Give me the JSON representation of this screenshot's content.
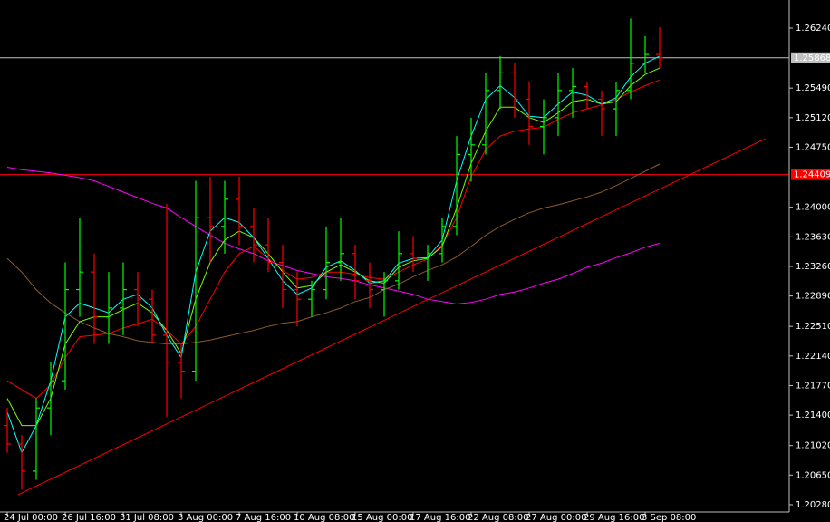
{
  "chart_data": {
    "type": "ohlc",
    "up_color": "#00ff00",
    "down_color": "#ff0000",
    "categories": [
      "24 Jul 00:00",
      null,
      null,
      null,
      "26 Jul 16:00",
      null,
      null,
      null,
      "31 Jul 08:00",
      null,
      null,
      null,
      "3 Aug 00:00",
      null,
      null,
      null,
      "7 Aug 16:00",
      null,
      null,
      null,
      "10 Aug 08:00",
      null,
      null,
      null,
      "15 Aug 00:00",
      null,
      null,
      null,
      "17 Aug 16:00",
      null,
      null,
      null,
      "22 Aug 08:00",
      null,
      null,
      null,
      "27 Aug 00:00",
      null,
      null,
      null,
      "29 Aug 16:00",
      null,
      null,
      null,
      "3 Sep 08:00",
      null
    ],
    "open": [
      1.2127,
      1.2104,
      1.207,
      1.2149,
      1.2183,
      1.2297,
      1.2319,
      1.2263,
      1.2274,
      1.2297,
      1.2285,
      1.224,
      1.2206,
      1.2195,
      1.2387,
      1.2376,
      1.241,
      1.2376,
      1.2353,
      1.2331,
      1.2297,
      1.2285,
      1.2297,
      1.2331,
      1.2342,
      1.2308,
      1.2297,
      1.2308,
      1.2342,
      1.2336,
      1.2342,
      1.2376,
      1.2466,
      1.2478,
      1.2546,
      1.2568,
      1.2535,
      1.2501,
      1.2512,
      1.2546,
      1.2551,
      1.2535,
      1.2523,
      1.2546,
      1.258,
      1.2591
    ],
    "high": [
      1.2149,
      1.2115,
      1.2161,
      1.2206,
      1.2331,
      1.2386,
      1.2342,
      1.2319,
      1.2331,
      1.2319,
      1.2297,
      1.2404,
      1.2229,
      1.2433,
      1.2438,
      1.2433,
      1.2438,
      1.2399,
      1.2387,
      1.2353,
      1.2319,
      1.2308,
      1.2376,
      1.2387,
      1.2353,
      1.2331,
      1.2319,
      1.237,
      1.2364,
      1.2353,
      1.2387,
      1.2489,
      1.2512,
      1.2568,
      1.2589,
      1.258,
      1.2557,
      1.2535,
      1.2568,
      1.2574,
      1.2557,
      1.2546,
      1.2557,
      1.2636,
      1.2614,
      1.2625
    ],
    "low": [
      1.2093,
      1.2047,
      1.2059,
      1.2115,
      1.2172,
      1.2263,
      1.2229,
      1.2229,
      1.224,
      1.2251,
      1.2229,
      1.2138,
      1.2161,
      1.2183,
      1.2331,
      1.2342,
      1.2353,
      1.2331,
      1.2319,
      1.2274,
      1.2251,
      1.2263,
      1.2285,
      1.2308,
      1.2285,
      1.2274,
      1.2263,
      1.2297,
      1.2319,
      1.2308,
      1.2331,
      1.2365,
      1.2432,
      1.2466,
      1.2523,
      1.2512,
      1.2478,
      1.2466,
      1.2489,
      1.2512,
      1.2523,
      1.2489,
      1.2489,
      1.2535,
      1.2568,
      1.2574
    ],
    "close": [
      1.2104,
      1.207,
      1.2149,
      1.2183,
      1.2297,
      1.2319,
      1.2263,
      1.2274,
      1.2297,
      1.2285,
      1.224,
      1.2206,
      1.2195,
      1.2387,
      1.2376,
      1.241,
      1.2376,
      1.2353,
      1.2331,
      1.2297,
      1.2285,
      1.2297,
      1.2331,
      1.2342,
      1.2308,
      1.2297,
      1.2308,
      1.2342,
      1.2336,
      1.2342,
      1.2376,
      1.2466,
      1.2478,
      1.2546,
      1.2568,
      1.2535,
      1.2501,
      1.2512,
      1.2546,
      1.2551,
      1.2535,
      1.2523,
      1.2546,
      1.258,
      1.2591,
      1.25868
    ],
    "series": [
      {
        "color": "#ff00ff",
        "values": [
          1.245,
          1.2447,
          1.2445,
          1.2443,
          1.244,
          1.2437,
          1.2433,
          1.2426,
          1.2419,
          1.2412,
          1.2405,
          1.2399,
          1.2387,
          1.2376,
          1.2365,
          1.2355,
          1.2348,
          1.2342,
          1.2333,
          1.2327,
          1.2321,
          1.2317,
          1.2313,
          1.2311,
          1.2308,
          1.2303,
          1.2299,
          1.2295,
          1.2291,
          1.2285,
          1.2282,
          1.2279,
          1.2281,
          1.2285,
          1.2291,
          1.2294,
          1.2299,
          1.2305,
          1.231,
          1.2317,
          1.2325,
          1.233,
          1.2337,
          1.2343,
          1.235,
          1.2355
        ]
      },
      {
        "color": "#8b5a2b",
        "values": [
          1.2336,
          1.2319,
          1.2297,
          1.228,
          1.2268,
          1.2257,
          1.2249,
          1.2242,
          1.2238,
          1.2233,
          1.2231,
          1.2229,
          1.2229,
          1.2231,
          1.2234,
          1.2238,
          1.2242,
          1.2246,
          1.2251,
          1.2255,
          1.2257,
          1.2263,
          1.2268,
          1.2274,
          1.2282,
          1.2287,
          1.2297,
          1.2304,
          1.2313,
          1.2321,
          1.2328,
          1.2338,
          1.2351,
          1.2365,
          1.2376,
          1.2385,
          1.2393,
          1.2399,
          1.2403,
          1.2408,
          1.2413,
          1.2419,
          1.2427,
          1.2436,
          1.2445,
          1.2454
        ]
      },
      {
        "color": "#ff0000",
        "values": [
          1.2183,
          1.2172,
          1.2161,
          1.2178,
          1.2212,
          1.2238,
          1.224,
          1.2242,
          1.2249,
          1.2254,
          1.226,
          1.2246,
          1.2229,
          1.2251,
          1.2285,
          1.2319,
          1.2342,
          1.2351,
          1.2336,
          1.2321,
          1.231,
          1.2312,
          1.2319,
          1.2319,
          1.2316,
          1.2312,
          1.231,
          1.2319,
          1.2328,
          1.2335,
          1.2353,
          1.2387,
          1.2438,
          1.2472,
          1.2489,
          1.2495,
          1.2498,
          1.25,
          1.251,
          1.2518,
          1.2523,
          1.2528,
          1.2535,
          1.2544,
          1.2552,
          1.2559
        ]
      },
      {
        "color": "#7cfc00",
        "values": [
          1.2161,
          1.2127,
          1.2127,
          1.2161,
          1.2229,
          1.2257,
          1.2263,
          1.2263,
          1.2272,
          1.228,
          1.2268,
          1.2246,
          1.2217,
          1.2285,
          1.2331,
          1.2359,
          1.237,
          1.2362,
          1.2342,
          1.2319,
          1.2299,
          1.2302,
          1.2319,
          1.2328,
          1.2319,
          1.2308,
          1.2305,
          1.2325,
          1.2333,
          1.2336,
          1.2351,
          1.2399,
          1.2455,
          1.2495,
          1.2525,
          1.2525,
          1.2512,
          1.2506,
          1.2518,
          1.2532,
          1.2535,
          1.2529,
          1.2532,
          1.2552,
          1.2566,
          1.2574
        ]
      },
      {
        "color": "#00ffff",
        "values": [
          1.2144,
          1.2093,
          1.2127,
          1.2183,
          1.2263,
          1.228,
          1.2274,
          1.2268,
          1.2285,
          1.2291,
          1.2274,
          1.224,
          1.2212,
          1.2319,
          1.237,
          1.2387,
          1.2381,
          1.2362,
          1.2336,
          1.2308,
          1.2291,
          1.2299,
          1.2325,
          1.2333,
          1.2321,
          1.2305,
          1.2308,
          1.233,
          1.2336,
          1.2337,
          1.2359,
          1.2433,
          1.2489,
          1.2535,
          1.2552,
          1.2537,
          1.2514,
          1.2512,
          1.2529,
          1.2544,
          1.254,
          1.2529,
          1.2537,
          1.2563,
          1.258,
          1.2589
        ]
      }
    ],
    "hlines": [
      {
        "value": 1.25868,
        "color": "#c0c0c0",
        "label_color": "#000000"
      },
      {
        "value": 1.24409,
        "color": "#ff0000",
        "label_color": "#000000"
      }
    ],
    "trendline": {
      "x": [
        0.75,
        52.3
      ],
      "y": [
        1.20405,
        1.24857
      ],
      "color": "#ff0000"
    },
    "ylim": [
      1.20189,
      1.26591
    ],
    "yticks": [
      {
        "value": 1.2028,
        "label": "1.20280"
      },
      {
        "value": 1.2065,
        "label": "1.20650"
      },
      {
        "value": 1.2102,
        "label": "1.21020"
      },
      {
        "value": 1.214,
        "label": "1.21400"
      },
      {
        "value": 1.2177,
        "label": "1.21770"
      },
      {
        "value": 1.2214,
        "label": "1.22140"
      },
      {
        "value": 1.2251,
        "label": "1.22510"
      },
      {
        "value": 1.2289,
        "label": "1.22890"
      },
      {
        "value": 1.2326,
        "label": "1.23260"
      },
      {
        "value": 1.2363,
        "label": "1.23630"
      },
      {
        "value": 1.24,
        "label": "1.24000"
      },
      {
        "value": 1.2475,
        "label": "1.24750"
      },
      {
        "value": 1.2512,
        "label": "1.25120"
      },
      {
        "value": 1.2549,
        "label": "1.25490"
      },
      {
        "value": 1.2624,
        "label": "1.26240"
      }
    ]
  }
}
